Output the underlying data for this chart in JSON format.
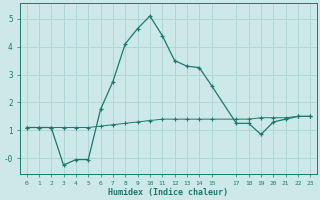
{
  "xlabel": "Humidex (Indice chaleur)",
  "background_color": "#cce8e8",
  "grid_color": "#aad4d4",
  "line_color": "#1a7a6e",
  "x_ticks": [
    0,
    1,
    2,
    3,
    4,
    5,
    6,
    7,
    8,
    9,
    10,
    11,
    12,
    13,
    14,
    15,
    17,
    18,
    19,
    20,
    21,
    22,
    23
  ],
  "xlim": [
    -0.5,
    23.5
  ],
  "ylim": [
    -0.55,
    5.55
  ],
  "y_ticks": [
    0,
    1,
    2,
    3,
    4,
    5
  ],
  "y_tick_labels": [
    "-0",
    "1",
    "2",
    "3",
    "4",
    "5"
  ],
  "series1_x": [
    0,
    1,
    2,
    3,
    4,
    5,
    6,
    7,
    8,
    9,
    10,
    11,
    12,
    13,
    14,
    15,
    17,
    18,
    19,
    20,
    21,
    22,
    23
  ],
  "series1_y": [
    1.1,
    1.1,
    1.1,
    1.1,
    1.1,
    1.1,
    1.15,
    1.2,
    1.25,
    1.3,
    1.35,
    1.4,
    1.4,
    1.4,
    1.4,
    1.4,
    1.4,
    1.4,
    1.45,
    1.45,
    1.45,
    1.5,
    1.5
  ],
  "series2_x": [
    0,
    1,
    2,
    3,
    4,
    5,
    6,
    7,
    8,
    9,
    10,
    11,
    12,
    13,
    14,
    15,
    17,
    18,
    19,
    20,
    21,
    22,
    23
  ],
  "series2_y": [
    1.1,
    1.1,
    1.1,
    -0.25,
    -0.05,
    -0.05,
    1.75,
    2.75,
    4.1,
    4.65,
    5.1,
    4.4,
    3.5,
    3.3,
    3.25,
    2.6,
    1.25,
    1.25,
    0.85,
    1.3,
    1.4,
    1.5,
    1.5
  ]
}
